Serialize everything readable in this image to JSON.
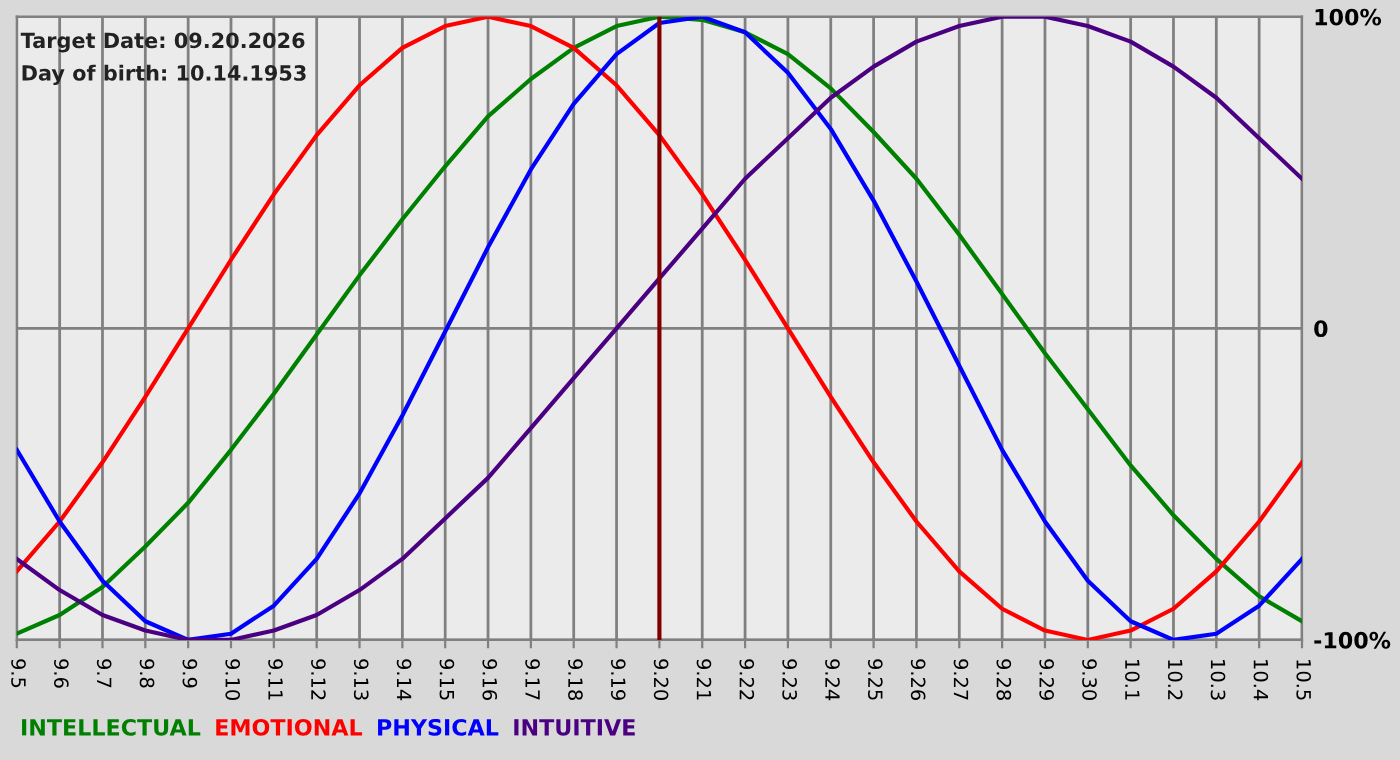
{
  "chart_data": {
    "type": "line",
    "categories": [
      "9.5",
      "9.6",
      "9.7",
      "9.8",
      "9.9",
      "9.10",
      "9.11",
      "9.12",
      "9.13",
      "9.14",
      "9.15",
      "9.16",
      "9.17",
      "9.18",
      "9.19",
      "9.20",
      "9.21",
      "9.22",
      "9.23",
      "9.24",
      "9.25",
      "9.26",
      "9.27",
      "9.28",
      "9.29",
      "9.30",
      "10.1",
      "10.2",
      "10.3",
      "10.4",
      "10.5"
    ],
    "series": [
      {
        "name": "INTELLECTUAL",
        "color": "#008000",
        "values": [
          -98,
          -92,
          -83,
          -70,
          -56,
          -39,
          -21,
          -2,
          17,
          35,
          52,
          68,
          80,
          90,
          97,
          100,
          99,
          95,
          88,
          77,
          63,
          48,
          30,
          11,
          -8,
          -26,
          -44,
          -60,
          -74,
          -86,
          -94
        ]
      },
      {
        "name": "EMOTIONAL",
        "color": "#ff0000",
        "values": [
          -78,
          -62,
          -43,
          -22,
          0,
          22,
          43,
          62,
          78,
          90,
          97,
          100,
          97,
          90,
          78,
          62,
          43,
          22,
          0,
          -22,
          -43,
          -62,
          -78,
          -90,
          -97,
          -100,
          -97,
          -90,
          -78,
          -62,
          -43
        ]
      },
      {
        "name": "PHYSICAL",
        "color": "#0000ff",
        "values": [
          -39,
          -62,
          -81,
          -94,
          -100,
          -98,
          -89,
          -74,
          -53,
          -28,
          -1,
          26,
          51,
          72,
          88,
          98,
          100,
          95,
          82,
          64,
          41,
          15,
          -12,
          -39,
          -62,
          -81,
          -94,
          -100,
          -98,
          -89,
          -74
        ]
      },
      {
        "name": "INTUITIVE",
        "color": "#4b0082",
        "values": [
          -74,
          -84,
          -92,
          -97,
          -100,
          -100,
          -97,
          -92,
          -84,
          -74,
          -61,
          -48,
          -32,
          -16,
          0,
          16,
          32,
          48,
          61,
          74,
          84,
          92,
          97,
          100,
          100,
          97,
          92,
          84,
          74,
          61,
          48
        ]
      }
    ],
    "ylim": [
      -100,
      100
    ],
    "yticks": [
      {
        "value": 100,
        "label": "100%"
      },
      0,
      {
        "value": -100,
        "label": "-100%"
      }
    ],
    "grid": true,
    "legend": "bottom",
    "ref_lines": [
      {
        "axis": "x",
        "value": "9.20",
        "color": "#800000"
      }
    ],
    "annotations": [
      "Target Date: 09.20.2026",
      "Day of birth: 10.14.1953"
    ]
  }
}
